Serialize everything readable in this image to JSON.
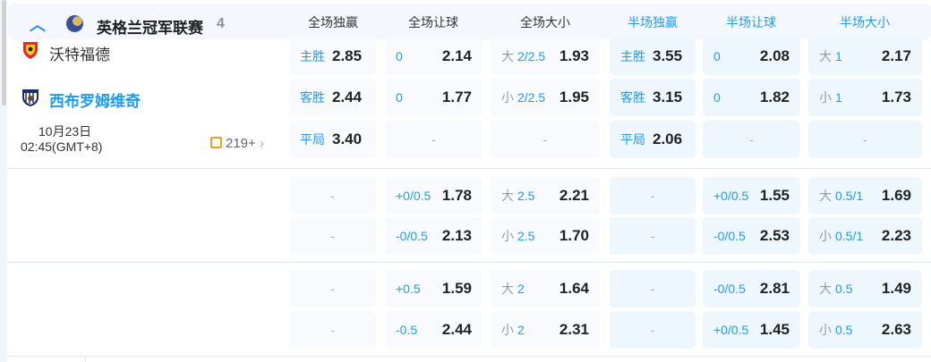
{
  "league": {
    "name": "英格兰冠军联赛",
    "count": "4",
    "expand_icon": "chevron-up-icon"
  },
  "columns": [
    {
      "label": "全场独赢",
      "color": "#333333"
    },
    {
      "label": "全场让球",
      "color": "#333333"
    },
    {
      "label": "全场大小",
      "color": "#333333"
    },
    {
      "label": "半场独赢",
      "color": "#1e9bf0"
    },
    {
      "label": "半场让球",
      "color": "#1e9bf0"
    },
    {
      "label": "半场大小",
      "color": "#1e9bf0"
    }
  ],
  "match": {
    "home": "沃特福德",
    "away": "西布罗姆维奇",
    "date": "10月23日",
    "time": "02:45(GMT+8)",
    "more_markets": "219+"
  },
  "blocks": [
    [
      [
        {
          "t": "w",
          "label": "主胜",
          "odds": "2.85"
        },
        {
          "t": "h",
          "line": "0",
          "odds": "2.14"
        },
        {
          "t": "o",
          "pre": "大",
          "line": "2/2.5",
          "odds": "1.93"
        },
        {
          "t": "w",
          "label": "主胜",
          "odds": "3.55"
        },
        {
          "t": "h",
          "line": "0",
          "odds": "2.08"
        },
        {
          "t": "o",
          "pre": "大",
          "line": "1",
          "odds": "2.17"
        }
      ],
      [
        {
          "t": "w",
          "label": "客胜",
          "odds": "2.44"
        },
        {
          "t": "h",
          "line": "0",
          "odds": "1.77"
        },
        {
          "t": "o",
          "pre": "小",
          "line": "2/2.5",
          "odds": "1.95"
        },
        {
          "t": "w",
          "label": "客胜",
          "odds": "3.15"
        },
        {
          "t": "h",
          "line": "0",
          "odds": "1.82"
        },
        {
          "t": "o",
          "pre": "小",
          "line": "1",
          "odds": "1.73"
        }
      ],
      [
        {
          "t": "w",
          "label": "平局",
          "odds": "3.40"
        },
        {
          "t": "e",
          "text": "-"
        },
        {
          "t": "e",
          "text": "-"
        },
        {
          "t": "w",
          "label": "平局",
          "odds": "2.06"
        },
        {
          "t": "e",
          "text": "-"
        },
        {
          "t": "e",
          "text": "-"
        }
      ]
    ],
    [
      [
        {
          "t": "e",
          "text": "-"
        },
        {
          "t": "h",
          "line": "+0/0.5",
          "odds": "1.78"
        },
        {
          "t": "o",
          "pre": "大",
          "line": "2.5",
          "odds": "2.21"
        },
        {
          "t": "e",
          "text": "-"
        },
        {
          "t": "h",
          "line": "+0/0.5",
          "odds": "1.55"
        },
        {
          "t": "o",
          "pre": "大",
          "line": "0.5/1",
          "odds": "1.69"
        }
      ],
      [
        {
          "t": "e",
          "text": "-"
        },
        {
          "t": "h",
          "line": "-0/0.5",
          "odds": "2.13"
        },
        {
          "t": "o",
          "pre": "小",
          "line": "2.5",
          "odds": "1.70"
        },
        {
          "t": "e",
          "text": "-"
        },
        {
          "t": "h",
          "line": "-0/0.5",
          "odds": "2.53"
        },
        {
          "t": "o",
          "pre": "小",
          "line": "0.5/1",
          "odds": "2.23"
        }
      ]
    ],
    [
      [
        {
          "t": "e",
          "text": "-"
        },
        {
          "t": "h",
          "line": "+0.5",
          "odds": "1.59"
        },
        {
          "t": "o",
          "pre": "大",
          "line": "2",
          "odds": "1.64"
        },
        {
          "t": "e",
          "text": "-"
        },
        {
          "t": "h",
          "line": "-0/0.5",
          "odds": "2.81"
        },
        {
          "t": "o",
          "pre": "大",
          "line": "0.5",
          "odds": "1.49"
        }
      ],
      [
        {
          "t": "e",
          "text": "-"
        },
        {
          "t": "h",
          "line": "-0.5",
          "odds": "2.44"
        },
        {
          "t": "o",
          "pre": "小",
          "line": "2",
          "odds": "2.31"
        },
        {
          "t": "e",
          "text": "-"
        },
        {
          "t": "h",
          "line": "+0/0.5",
          "odds": "1.45"
        },
        {
          "t": "o",
          "pre": "小",
          "line": "0.5",
          "odds": "2.63"
        }
      ]
    ]
  ]
}
